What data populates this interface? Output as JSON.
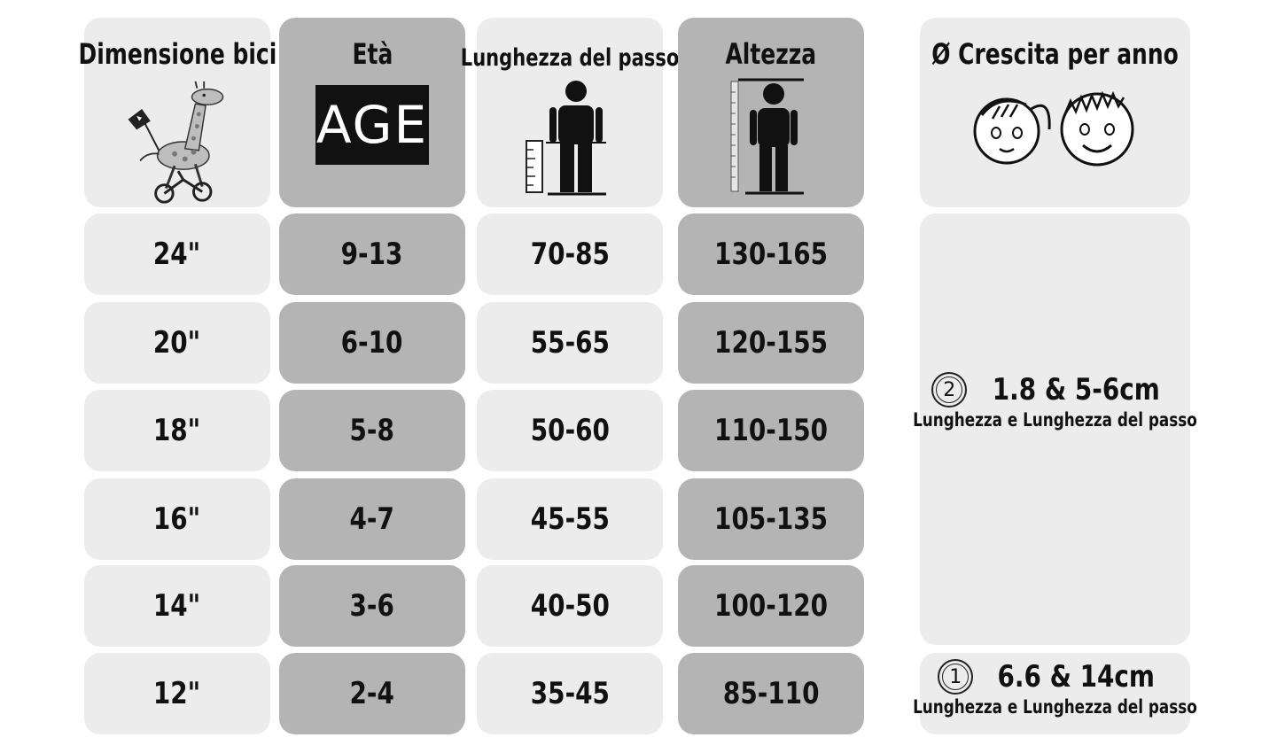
{
  "headers": {
    "size": "Dimensione bici",
    "age": "Età",
    "inseam": "Lunghezza del passo",
    "height": "Altezza",
    "growth": "Ø Crescita per anno"
  },
  "age_icon_text": "AGE",
  "rows": [
    {
      "size": "24\"",
      "age": "9-13",
      "inseam": "70-85",
      "height": "130-165"
    },
    {
      "size": "20\"",
      "age": "6-10",
      "inseam": "55-65",
      "height": "120-155"
    },
    {
      "size": "18\"",
      "age": "5-8",
      "inseam": "50-60",
      "height": "110-150"
    },
    {
      "size": "16\"",
      "age": "4-7",
      "inseam": "45-55",
      "height": "105-135"
    },
    {
      "size": "14\"",
      "age": "3-6",
      "inseam": "40-50",
      "height": "100-120"
    },
    {
      "size": "12\"",
      "age": "2-4",
      "inseam": "35-45",
      "height": "85-110"
    }
  ],
  "growth": [
    {
      "number": "2",
      "value": "1.8 & 5-6cm",
      "label": "Lunghezza e Lunghezza del passo"
    },
    {
      "number": "1",
      "value": "6.6 & 14cm",
      "label": "Lunghezza e Lunghezza del passo"
    }
  ],
  "icons": {
    "size": "giraffe-bike-icon",
    "age": "age-badge-icon",
    "inseam": "child-inseam-ruler-icon",
    "height": "child-height-ruler-icon",
    "growth": "kids-faces-icon"
  }
}
